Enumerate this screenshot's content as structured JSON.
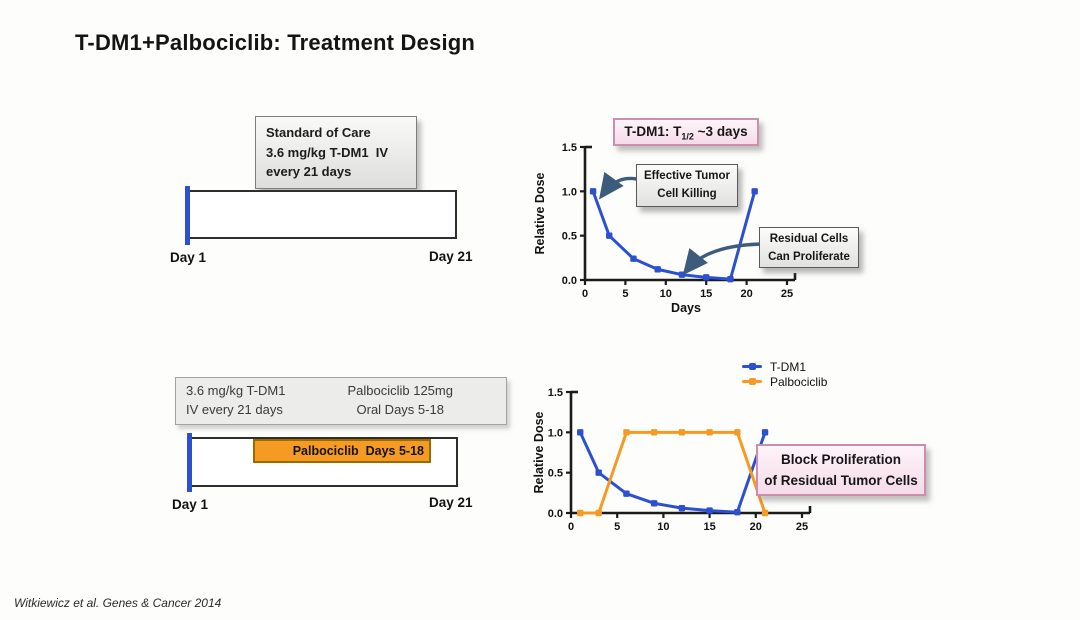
{
  "slide": {
    "title": "T-DM1+Palbociclib: Treatment Design",
    "citation": "Witkiewicz et al. Genes & Cancer 2014"
  },
  "colors": {
    "tdm1_blue": "#2B50D0",
    "palbociclib_orange": "#F59A23",
    "arrow": "#3D5C7D",
    "pink_box_bg": "#F6DBE8",
    "pink_box_border": "#CB8FAE"
  },
  "standard_of_care": {
    "info_lines": [
      "Standard of Care",
      "3.6 mg/kg T-DM1  IV",
      "every 21 days"
    ],
    "day_start_label": "Day 1",
    "day_end_label": "Day 21"
  },
  "combination": {
    "info_col1_lines": [
      "3.6 mg/kg T-DM1",
      "IV every 21 days"
    ],
    "info_col2_lines": [
      "Palbociclib 125mg",
      "Oral Days 5-18"
    ],
    "bar_label": "Palbociclib  Days 5-18",
    "day_start_label": "Day 1",
    "day_end_label": "Day 21"
  },
  "chart_data": [
    {
      "id": "tdm1-halflife",
      "type": "line",
      "title": {
        "prefix": "T-DM1: T",
        "sub": "1/2",
        "suffix": " ~3 days"
      },
      "xlabel": "Days",
      "ylabel": "Relative Dose",
      "xlim": [
        0,
        25
      ],
      "ylim": [
        0,
        1.5
      ],
      "xticks": [
        0,
        5,
        10,
        15,
        20,
        25
      ],
      "ytick_labels": [
        "0.0",
        "0.5",
        "1.0",
        "1.5"
      ],
      "x": [
        1,
        3,
        6,
        9,
        12,
        15,
        18,
        21
      ],
      "series": [
        {
          "name": "T-DM1",
          "color": "#2B50D0",
          "values": [
            1.0,
            0.5,
            0.24,
            0.12,
            0.06,
            0.03,
            0.01,
            1.0
          ]
        }
      ],
      "annotations": [
        {
          "lines": [
            "Effective Tumor",
            "Cell Killing"
          ]
        },
        {
          "lines": [
            "Residual Cells",
            "Can Proliferate"
          ]
        }
      ],
      "legend_position": "none",
      "grid": false
    },
    {
      "id": "combination",
      "type": "line",
      "xlabel": "",
      "ylabel": "Relative Dose",
      "xlim": [
        0,
        25
      ],
      "ylim": [
        0,
        1.5
      ],
      "xticks": [
        0,
        5,
        10,
        15,
        20,
        25
      ],
      "ytick_labels": [
        "0.0",
        "0.5",
        "1.0",
        "1.5"
      ],
      "x": [
        1,
        3,
        6,
        9,
        12,
        15,
        18,
        21
      ],
      "series": [
        {
          "name": "T-DM1",
          "color": "#2B50D0",
          "values": [
            1.0,
            0.5,
            0.24,
            0.12,
            0.06,
            0.03,
            0.01,
            1.0
          ]
        },
        {
          "name": "Palbociclib",
          "color": "#F59A23",
          "values": [
            0,
            0,
            1.0,
            1.0,
            1.0,
            1.0,
            1.0,
            0
          ]
        }
      ],
      "legend": [
        "T-DM1",
        "Palbociclib"
      ],
      "legend_position": "top-right",
      "annotation": {
        "lines": [
          "Block Proliferation",
          "of Residual Tumor Cells"
        ]
      },
      "grid": false
    }
  ]
}
